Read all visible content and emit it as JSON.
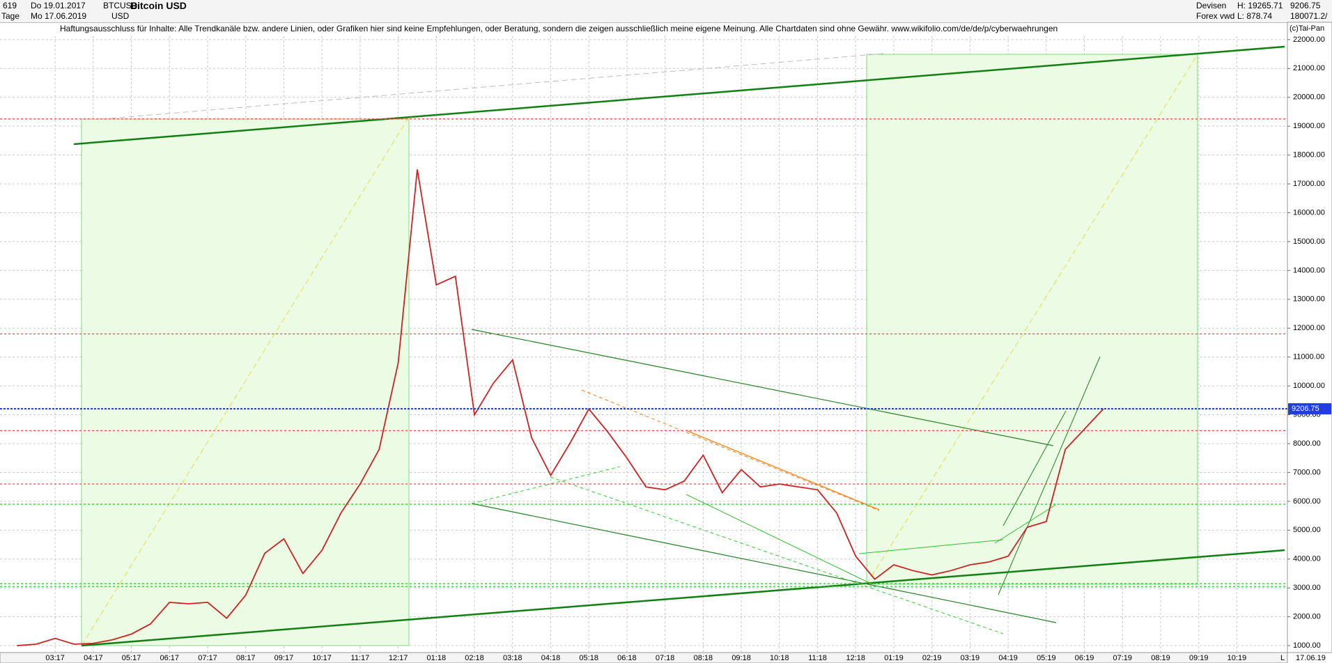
{
  "header": {
    "count": "619",
    "from_date": "Do 19.01.2017",
    "symbol": "BTCUSD",
    "name": "Bitcoin USD",
    "period": "Tage",
    "to_date": "Mo 17.06.2019",
    "currency": "USD",
    "market": "Devisen",
    "source": "Forex vwd",
    "high": "H: 19265.71",
    "low": "L: 878.74",
    "last": "9206.75",
    "volume": "180071.2/",
    "disclaimer": "Haftungsausschluss für Inhalte: Alle Trendkanäle bzw. andere Linien, oder Grafiken hier sind keine Empfehlungen, oder Beratung, sondern die zeigen ausschließlich meine eigene Meinung. Alle Chartdaten sind ohne Gewähr.  www.wikifolio.com/de/de/p/cyberwaehrungen",
    "copyright": "(c)Tai-Pan",
    "footer_date": "17.06.19",
    "footer_flag": "L"
  },
  "chart_data": {
    "type": "line",
    "color": "#cc2222",
    "categories": [
      null,
      null,
      "03:17",
      null,
      "04:17",
      null,
      "05:17",
      null,
      "06:17",
      null,
      "07:17",
      null,
      "08:17",
      null,
      "09:17",
      null,
      "10:17",
      null,
      "11:17",
      null,
      "12:17",
      null,
      "01:18",
      null,
      "02:18",
      null,
      "03:18",
      null,
      "04:18",
      null,
      "05:18",
      null,
      "06:18",
      null,
      "07:18",
      null,
      "08:18",
      null,
      "09:18",
      null,
      "10:18",
      null,
      "11:18",
      null,
      "12:18",
      null,
      "01:19",
      null,
      "02:19",
      null,
      "03:19",
      null,
      "04:19",
      null,
      "05:19",
      null,
      "06:19",
      null,
      "07:19",
      null,
      "08:19",
      null,
      "09:19",
      null,
      "10:19",
      null
    ],
    "values": [
      1000,
      1050,
      1250,
      1050,
      1080,
      1200,
      1400,
      1750,
      2500,
      2450,
      2500,
      1950,
      2750,
      4200,
      4700,
      3500,
      4300,
      5600,
      6600,
      7800,
      10800,
      17500,
      13500,
      13800,
      9000,
      10100,
      10900,
      8200,
      6900,
      8000,
      9200,
      8400,
      7500,
      6500,
      6400,
      6700,
      7600,
      6300,
      7100,
      6500,
      6600,
      6500,
      6400,
      5600,
      4100,
      3300,
      3800,
      3600,
      3450,
      3600,
      3800,
      3900,
      4100,
      5100,
      5300,
      7800,
      8500,
      9206.75,
      null,
      null,
      null,
      null,
      null,
      null,
      null,
      null
    ],
    "ylim": [
      760,
      22600
    ],
    "yticks": [
      {
        "value": 1000,
        "label": "1000.00"
      },
      {
        "value": 2000,
        "label": "2000.00"
      },
      {
        "value": 3000,
        "label": "3000.00"
      },
      {
        "value": 4000,
        "label": "4000.00"
      },
      {
        "value": 5000,
        "label": "5000.00"
      },
      {
        "value": 6000,
        "label": "6000.00"
      },
      {
        "value": 7000,
        "label": "7000.00"
      },
      {
        "value": 8000,
        "label": "8000.00"
      },
      {
        "value": 9000,
        "label": "9000.00"
      },
      {
        "value": 10000,
        "label": "10000.00"
      },
      {
        "value": 11000,
        "label": "11000.00"
      },
      {
        "value": 12000,
        "label": "12000.00"
      },
      {
        "value": 13000,
        "label": "13000.00"
      },
      {
        "value": 14000,
        "label": "14000.00"
      },
      {
        "value": 15000,
        "label": "15000.00"
      },
      {
        "value": 16000,
        "label": "16000.00"
      },
      {
        "value": 17000,
        "label": "17000.00"
      },
      {
        "value": 18000,
        "label": "18000.00"
      },
      {
        "value": 19000,
        "label": "19000.00"
      },
      {
        "value": 20000,
        "label": "20000.00"
      },
      {
        "value": 21000,
        "label": "21000.00"
      },
      {
        "value": 22000,
        "label": "22000.00"
      }
    ],
    "grid": true,
    "last_price": {
      "value": 9206.75,
      "label": "9206.75",
      "color": "#1f3fe0"
    },
    "reference_lines": [
      {
        "value": 19250,
        "color": "#e05050"
      },
      {
        "value": 11800,
        "color": "#e05050"
      },
      {
        "value": 8450,
        "color": "#e05050"
      },
      {
        "value": 6600,
        "color": "#e05050"
      },
      {
        "value": 5900,
        "color": "#30c030"
      },
      {
        "value": 3150,
        "color": "#30c030"
      },
      {
        "value": 3050,
        "color": "#30c030"
      }
    ]
  }
}
